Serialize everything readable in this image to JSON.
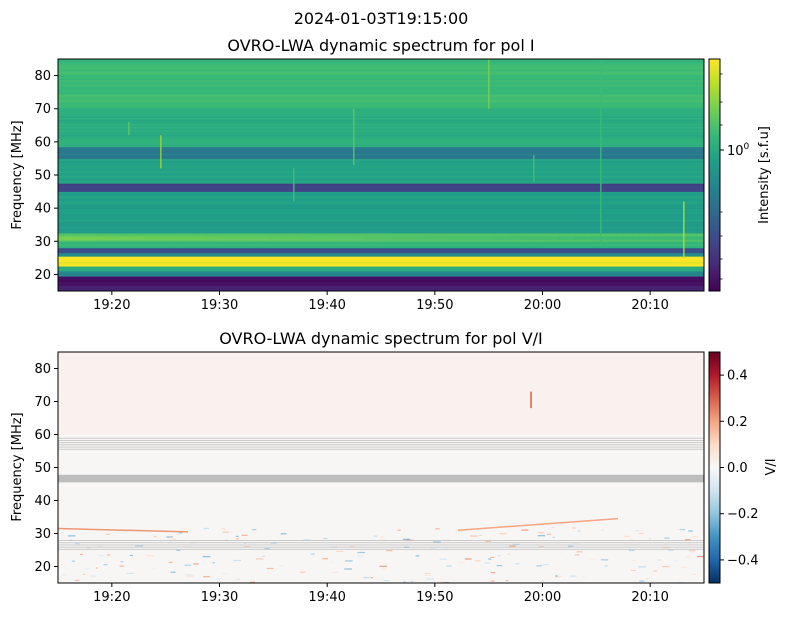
{
  "figure": {
    "suptitle": "2024-01-03T19:15:00"
  },
  "colors": {
    "viridis": [
      "#440154",
      "#482878",
      "#3e4989",
      "#31688e",
      "#26828e",
      "#1f9e89",
      "#35b779",
      "#6ece58",
      "#b5de2b",
      "#fde725"
    ],
    "rdbu": [
      "#053061",
      "#2166ac",
      "#4393c3",
      "#92c5de",
      "#d1e5f0",
      "#f7f7f7",
      "#fddbc7",
      "#f4a582",
      "#d6604d",
      "#b2182b",
      "#67001f"
    ],
    "flagged_gray": "#bdbdbd"
  },
  "chart_data": [
    {
      "type": "heatmap",
      "title": "OVRO-LWA dynamic spectrum for pol I",
      "ylabel": "Frequency [MHz]",
      "xlabel": "",
      "xlim": [
        "19:15",
        "20:15"
      ],
      "ylim": [
        15,
        85
      ],
      "xticks": [
        "19:20",
        "19:30",
        "19:40",
        "19:50",
        "20:00",
        "20:10"
      ],
      "yticks": [
        20,
        30,
        40,
        50,
        60,
        70,
        80
      ],
      "colormap": "viridis",
      "colorbar": {
        "label": "Intensity [s.f.u]",
        "scale": "log",
        "tick_label": "10",
        "tick_exponent": "0"
      },
      "bands": [
        {
          "f0": 15,
          "f1": 16.5,
          "level": 0.1
        },
        {
          "f0": 16.5,
          "f1": 19.5,
          "level": 0.03
        },
        {
          "f0": 19.5,
          "f1": 21,
          "level": 0.45
        },
        {
          "f0": 21,
          "f1": 22.5,
          "level": 0.62
        },
        {
          "f0": 22.5,
          "f1": 25.5,
          "level": 0.98
        },
        {
          "f0": 25.5,
          "f1": 26.5,
          "level": 0.5
        },
        {
          "f0": 26.5,
          "f1": 28,
          "level": 0.22
        },
        {
          "f0": 28,
          "f1": 30,
          "level": 0.66
        },
        {
          "f0": 30,
          "f1": 32.5,
          "level": 0.74
        },
        {
          "f0": 32.5,
          "f1": 45,
          "level": 0.56
        },
        {
          "f0": 45,
          "f1": 47.5,
          "level": 0.2
        },
        {
          "f0": 47.5,
          "f1": 55,
          "level": 0.58
        },
        {
          "f0": 55,
          "f1": 58.5,
          "level": 0.4
        },
        {
          "f0": 58.5,
          "f1": 70,
          "level": 0.62
        },
        {
          "f0": 70,
          "f1": 85,
          "level": 0.68
        }
      ]
    },
    {
      "type": "heatmap",
      "title": "OVRO-LWA dynamic spectrum for pol V/I",
      "ylabel": "Frequency [MHz]",
      "xlabel": "",
      "xlim": [
        "19:15",
        "20:15"
      ],
      "ylim": [
        15,
        85
      ],
      "xticks": [
        "19:20",
        "19:30",
        "19:40",
        "19:50",
        "20:00",
        "20:10"
      ],
      "yticks": [
        20,
        30,
        40,
        50,
        60,
        70,
        80
      ],
      "colormap": "RdBu_r",
      "colorbar": {
        "label": "V/I",
        "range": [
          -0.5,
          0.5
        ],
        "ticks": [
          "0.4",
          "0.2",
          "0.0",
          "−0.2",
          "−0.4"
        ]
      },
      "flagged_bands": [
        {
          "f0": 45.5,
          "f1": 47.8
        },
        {
          "f0": 55.5,
          "f1": 59
        },
        {
          "f0": 25,
          "f1": 28
        }
      ]
    }
  ]
}
